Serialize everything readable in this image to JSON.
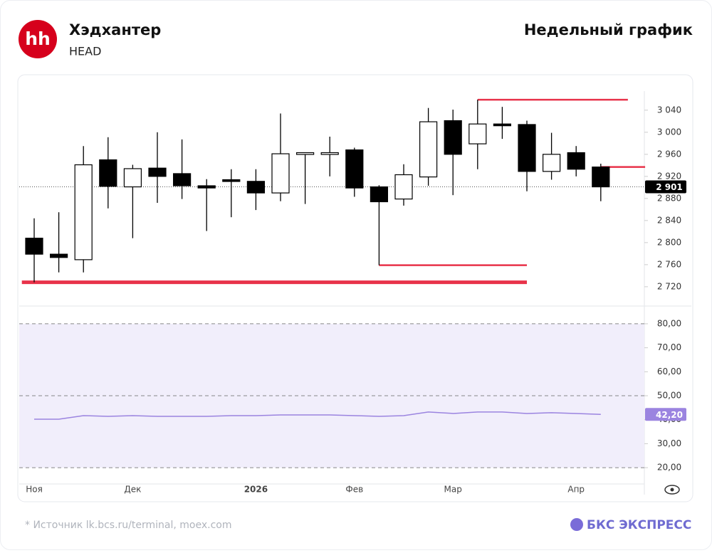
{
  "header": {
    "logo": "hh",
    "title": "Хэдхантер",
    "ticker": "HEAD",
    "period": "Недельный график"
  },
  "chart_data": [
    {
      "type": "candlestick",
      "categories": [
        "Ноя",
        null,
        null,
        null,
        "Дек",
        null,
        null,
        null,
        null,
        "2026",
        null,
        null,
        null,
        "Фев",
        null,
        null,
        null,
        "Мар",
        null,
        null,
        null,
        null,
        "Апр",
        null
      ],
      "open": [
        2808,
        2779,
        2769,
        2950,
        2901,
        2935,
        2925,
        2903,
        2914,
        2911,
        2890,
        2962,
        2962,
        2968,
        2901,
        2879,
        2919,
        3021,
        2979,
        3015,
        3014,
        2929,
        2963,
        2937
      ],
      "close": [
        2779,
        2773,
        2941,
        2902,
        2934,
        2920,
        2903,
        2899,
        2911,
        2890,
        2961,
        2963,
        2963,
        2899,
        2874,
        2923,
        3019,
        2960,
        3015,
        3012,
        2929,
        2960,
        2933,
        2901
      ],
      "high": [
        2844,
        2855,
        2975,
        2991,
        2941,
        3000,
        2987,
        2915,
        2933,
        2933,
        3034,
        2963,
        2992,
        2972,
        2904,
        2942,
        3044,
        3041,
        3059,
        3046,
        3021,
        2999,
        2975,
        2943
      ],
      "low": [
        2728,
        2746,
        2746,
        2862,
        2808,
        2872,
        2879,
        2821,
        2846,
        2859,
        2875,
        2870,
        2920,
        2883,
        2759,
        2867,
        2903,
        2886,
        2933,
        2988,
        2893,
        2914,
        2920,
        2875
      ],
      "up_color": "#ffffff",
      "down_color": "#000000",
      "levels": [
        {
          "value": 2728,
          "x": [
            -0.5,
            20
          ],
          "color": "#e8334a"
        },
        {
          "value": 2759,
          "x": [
            14,
            20
          ],
          "color": "#e8334a"
        },
        {
          "value": 3059,
          "x": [
            18,
            24.1
          ],
          "color": "#e8334a"
        },
        {
          "value": 2937,
          "x": [
            23,
            24.8
          ],
          "color": "#e8334a"
        }
      ],
      "last_value": {
        "value": 2901,
        "label": "2 901"
      },
      "ylim": [
        2685,
        3072
      ],
      "yticks": [
        {
          "value": 2720,
          "label": "2 720"
        },
        {
          "value": 2760,
          "label": "2 760"
        },
        {
          "value": 2800,
          "label": "2 800"
        },
        {
          "value": 2840,
          "label": "2 840"
        },
        {
          "value": 2880,
          "label": "2 880"
        },
        {
          "value": 2920,
          "label": "2 920"
        },
        {
          "value": 2960,
          "label": "2 960"
        },
        {
          "value": 3000,
          "label": "3 000"
        },
        {
          "value": 3040,
          "label": "3 040"
        }
      ]
    },
    {
      "type": "line",
      "values": [
        40.2,
        40.2,
        41.7,
        41.4,
        41.7,
        41.4,
        41.4,
        41.4,
        41.7,
        41.7,
        42.0,
        42.0,
        42.0,
        41.7,
        41.4,
        41.7,
        43.2,
        42.6,
        43.2,
        43.2,
        42.6,
        42.9,
        42.6,
        42.2
      ],
      "color": "#9b84e0",
      "last_value": {
        "value": 42.2,
        "label": "42,20"
      },
      "band": [
        20,
        80
      ],
      "dashed": [
        20,
        50,
        80
      ],
      "ylim": [
        13.2,
        87.4
      ],
      "yticks": [
        {
          "value": 20,
          "label": "20,00"
        },
        {
          "value": 30,
          "label": "30,00"
        },
        {
          "value": 40,
          "label": "40,00"
        },
        {
          "value": 50,
          "label": "50,00"
        },
        {
          "value": 60,
          "label": "60,00"
        },
        {
          "value": 70,
          "label": "70,00"
        },
        {
          "value": 80,
          "label": "80,00"
        }
      ]
    }
  ],
  "footer": {
    "source": "* Источник lk.bcs.ru/terminal, moex.com",
    "brand": "БКС ЭКСПРЕСС"
  }
}
